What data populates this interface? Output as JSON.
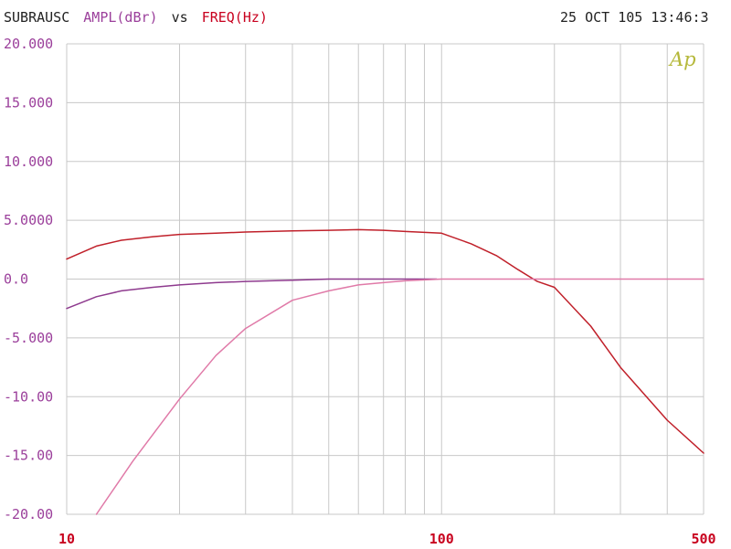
{
  "chart_data": {
    "type": "line",
    "title_parts": {
      "name": "SUBRAUSC",
      "ylabel": "AMPL(dBr)",
      "vs": "vs",
      "xlabel": "FREQ(Hz)"
    },
    "timestamp": "25 OCT 105 13:46:3",
    "logo": "Ap",
    "x_scale": "log",
    "xlim": [
      10,
      500
    ],
    "ylim": [
      -20,
      20
    ],
    "grid": true,
    "x_tick_labels": [
      {
        "value": 10,
        "label": "10"
      },
      {
        "value": 100,
        "label": "100"
      },
      {
        "value": 500,
        "label": "500"
      }
    ],
    "y_tick_labels": [
      {
        "value": 20,
        "label": "20.000"
      },
      {
        "value": 15,
        "label": "15.000"
      },
      {
        "value": 10,
        "label": "10.000"
      },
      {
        "value": 5,
        "label": "5.0000"
      },
      {
        "value": 0,
        "label": "0.0"
      },
      {
        "value": -5,
        "label": "-5.000"
      },
      {
        "value": -10,
        "label": "-10.00"
      },
      {
        "value": -15,
        "label": "-15.00"
      },
      {
        "value": -20,
        "label": "-20.00"
      }
    ],
    "colors": {
      "label_purple": "#9b3f9b",
      "label_red": "#c8001e",
      "grid": "#c8c8c8",
      "logo": "#b5b83a"
    },
    "series": [
      {
        "color": "#c0202a",
        "x": [
          10,
          12,
          14,
          17,
          20,
          25,
          30,
          40,
          50,
          60,
          70,
          80,
          100,
          120,
          140,
          160,
          180,
          200,
          250,
          300,
          400,
          500
        ],
        "y": [
          1.7,
          2.8,
          3.3,
          3.6,
          3.8,
          3.9,
          4.0,
          4.1,
          4.15,
          4.2,
          4.15,
          4.05,
          3.9,
          3.0,
          2.0,
          0.8,
          -0.2,
          -0.7,
          -4.0,
          -7.5,
          -12.0,
          -14.8
        ]
      },
      {
        "color": "#8e3a8e",
        "x": [
          10,
          12,
          14,
          17,
          20,
          25,
          30,
          40,
          50,
          60,
          70,
          80,
          90,
          97
        ],
        "y": [
          -2.5,
          -1.5,
          -1.0,
          -0.7,
          -0.5,
          -0.3,
          -0.2,
          -0.1,
          0.0,
          0.0,
          0.0,
          0.0,
          0.0,
          0.0
        ]
      },
      {
        "color": "#e07aa8",
        "x": [
          12,
          15,
          20,
          25,
          30,
          40,
          50,
          60,
          70,
          80,
          100,
          120,
          160,
          200,
          250,
          300,
          400,
          500
        ],
        "y": [
          -20.0,
          -15.5,
          -10.2,
          -6.5,
          -4.2,
          -1.8,
          -1.0,
          -0.5,
          -0.3,
          -0.15,
          0.0,
          0.0,
          0.0,
          0.0,
          0.0,
          0.0,
          0.0,
          0.0
        ]
      }
    ]
  }
}
